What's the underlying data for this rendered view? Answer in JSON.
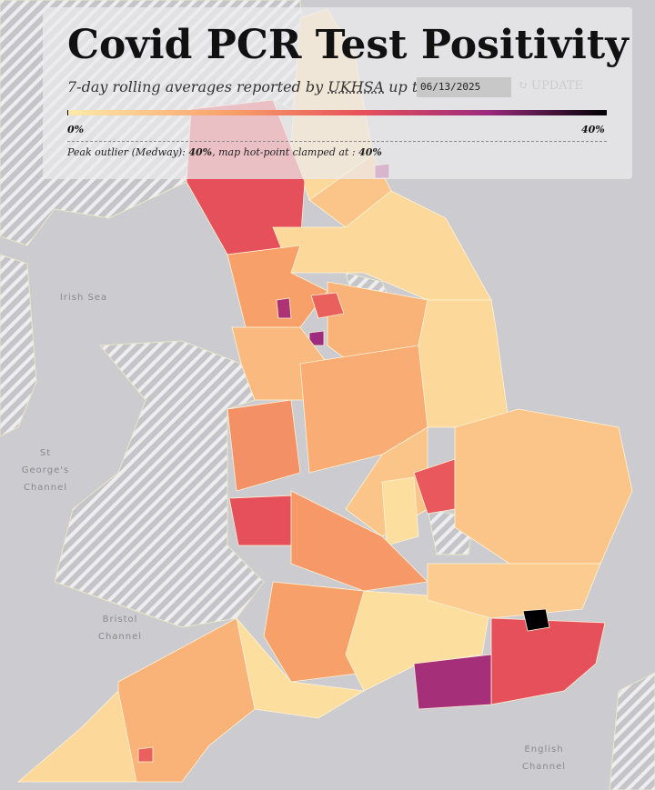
{
  "header": {
    "title": "Covid PCR Test Positivity",
    "subtitle_before": "7-day rolling averages reported by",
    "source": "UKHSA",
    "subtitle_after": "up to:",
    "date": "06/13/2025",
    "button": "UPDATE"
  },
  "legend": {
    "ticks": [
      {
        "value": 0,
        "label": "0%"
      },
      {
        "value": 40,
        "label": "40%"
      }
    ],
    "note": {
      "before": "Peak outlier (Medway): ",
      "peak": "40%",
      "middle": ", map hot-point clamped at : ",
      "clamp": "40%"
    }
  },
  "sea_labels": [
    {
      "lines": [
        "Irish Sea"
      ]
    },
    {
      "lines": [
        "St",
        "George's",
        "Channel"
      ]
    },
    {
      "lines": [
        "Bristol",
        "Channel"
      ]
    },
    {
      "lines": [
        "English",
        "Channel"
      ]
    }
  ],
  "map": {
    "region_values": [
      3,
      22,
      6,
      30,
      3,
      12,
      29,
      31,
      9,
      20,
      3,
      8,
      14,
      22,
      10,
      6,
      2,
      21,
      6,
      13,
      12,
      2,
      5,
      22,
      40,
      30,
      2,
      9,
      3,
      20
    ]
  }
}
